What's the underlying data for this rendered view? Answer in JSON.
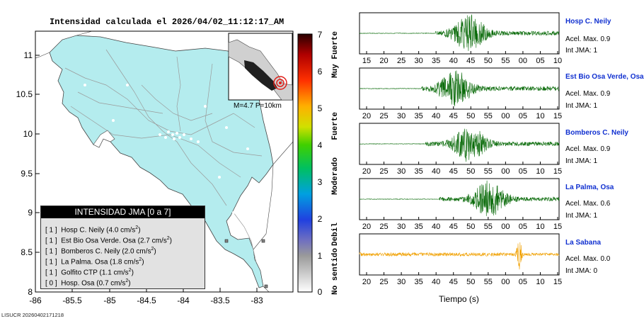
{
  "map": {
    "title": "Intensidad calculada el 2026/04/02_11:12:17_AM",
    "lat_ticks": [
      "11",
      "10.5",
      "10",
      "9.5",
      "9",
      "8.5",
      "8"
    ],
    "lon_ticks": [
      "-86",
      "-85.5",
      "-85",
      "-84.5",
      "-84",
      "-83.5",
      "-83"
    ],
    "inset_label": "M=4.7 P=10km",
    "watermark": "LISUCR 20260402171218",
    "land_color": "#b4ecee",
    "epicenter_color": "#e0201a"
  },
  "legend": {
    "title": "INTENSIDAD JMA [0 a 7]",
    "items": [
      {
        "level": "[ 1 ]",
        "text": "Hosp C. Neily (4.0 cm/s",
        "sup": "2",
        "tail": ")"
      },
      {
        "level": "[ 1 ]",
        "text": "Est Bio Osa Verde. Osa (2.7 cm/s",
        "sup": "2",
        "tail": ")"
      },
      {
        "level": "[ 1 ]",
        "text": "Bomberos C. Neily (2.0 cm/s",
        "sup": "2",
        "tail": ")"
      },
      {
        "level": "[ 1 ]",
        "text": "La Palma. Osa (1.8 cm/s",
        "sup": "2",
        "tail": ")"
      },
      {
        "level": "[ 1 ]",
        "text": "Golfito CTP (1.1 cm/s",
        "sup": "2",
        "tail": ")"
      },
      {
        "level": "[ 0 ]",
        "text": "Hosp. Osa (0.7 cm/s",
        "sup": "2",
        "tail": ")"
      }
    ]
  },
  "scale": {
    "numbers": [
      "7",
      "6",
      "5",
      "4",
      "3",
      "2",
      "1",
      "0"
    ],
    "words": [
      "Muy Fuerte",
      "Fuerte",
      "Moderado",
      "Debil",
      "No sentido"
    ]
  },
  "stations": [
    {
      "name": "Hosp C. Neily",
      "acel": "Acel. Max. 0.9",
      "int": "Int JMA: 1",
      "ticks": [
        "15",
        "20",
        "25",
        "30",
        "35",
        "40",
        "45",
        "50",
        "55",
        "00",
        "05",
        "10"
      ],
      "color": "#0a6b0a"
    },
    {
      "name": "Est Bio Osa Verde, Osa",
      "acel": "Acel. Max. 0.9",
      "int": "Int JMA: 1",
      "ticks": [
        "20",
        "25",
        "30",
        "35",
        "40",
        "45",
        "50",
        "55",
        "00",
        "05",
        "10",
        "15"
      ],
      "color": "#0a6b0a"
    },
    {
      "name": "Bomberos C. Neily",
      "acel": "Acel. Max. 0.9",
      "int": "Int JMA: 1",
      "ticks": [
        "20",
        "25",
        "30",
        "35",
        "40",
        "45",
        "50",
        "55",
        "00",
        "05",
        "10",
        "15"
      ],
      "color": "#0a6b0a"
    },
    {
      "name": "La Palma, Osa",
      "acel": "Acel. Max. 0.6",
      "int": "Int JMA: 1",
      "ticks": [
        "20",
        "25",
        "30",
        "35",
        "40",
        "45",
        "50",
        "55",
        "00",
        "05",
        "10",
        "15"
      ],
      "color": "#0a6b0a"
    },
    {
      "name": "La Sabana",
      "acel": "Acel. Max. 0.0",
      "int": "Int JMA: 0",
      "ticks": [
        "20",
        "25",
        "30",
        "35",
        "40",
        "45",
        "50",
        "55",
        "00",
        "05",
        "10",
        "15"
      ],
      "color": "#f0a000"
    }
  ],
  "time_axis_label": "Tiempo (s)"
}
